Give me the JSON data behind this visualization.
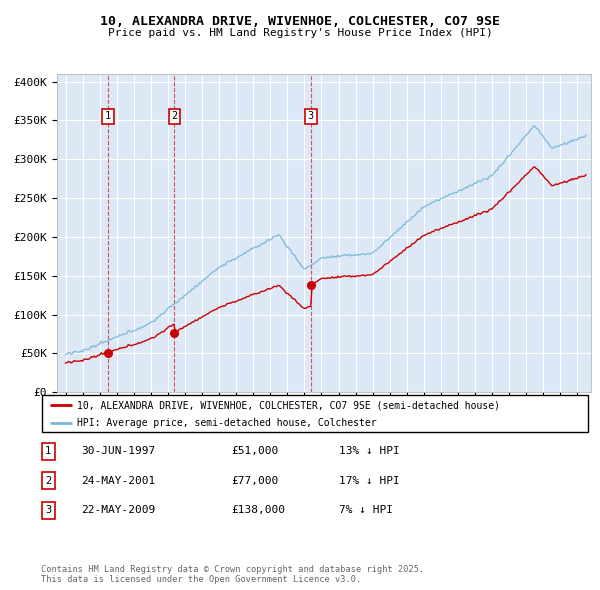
{
  "title_line1": "10, ALEXANDRA DRIVE, WIVENHOE, COLCHESTER, CO7 9SE",
  "title_line2": "Price paid vs. HM Land Registry's House Price Index (HPI)",
  "ylabel_ticks": [
    "£0",
    "£50K",
    "£100K",
    "£150K",
    "£200K",
    "£250K",
    "£300K",
    "£350K",
    "£400K"
  ],
  "ytick_values": [
    0,
    50000,
    100000,
    150000,
    200000,
    250000,
    300000,
    350000,
    400000
  ],
  "ylim": [
    0,
    410000
  ],
  "xlim_start": 1994.5,
  "xlim_end": 2025.8,
  "sale_dates": [
    1997.49,
    2001.38,
    2009.38
  ],
  "sale_prices": [
    51000,
    77000,
    138000
  ],
  "sale_labels": [
    "1",
    "2",
    "3"
  ],
  "hpi_line_color": "#7ab8d9",
  "price_line_color": "#cc0000",
  "sale_marker_color": "#cc0000",
  "legend_entries": [
    "10, ALEXANDRA DRIVE, WIVENHOE, COLCHESTER, CO7 9SE (semi-detached house)",
    "HPI: Average price, semi-detached house, Colchester"
  ],
  "table_rows": [
    {
      "label": "1",
      "date": "30-JUN-1997",
      "price": "£51,000",
      "hpi": "13% ↓ HPI"
    },
    {
      "label": "2",
      "date": "24-MAY-2001",
      "price": "£77,000",
      "hpi": "17% ↓ HPI"
    },
    {
      "label": "3",
      "date": "22-MAY-2009",
      "price": "£138,000",
      "hpi": "7% ↓ HPI"
    }
  ],
  "footnote": "Contains HM Land Registry data © Crown copyright and database right 2025.\nThis data is licensed under the Open Government Licence v3.0.",
  "background_color": "#ffffff",
  "plot_bg_color": "#dce8f5",
  "grid_color": "#ffffff"
}
